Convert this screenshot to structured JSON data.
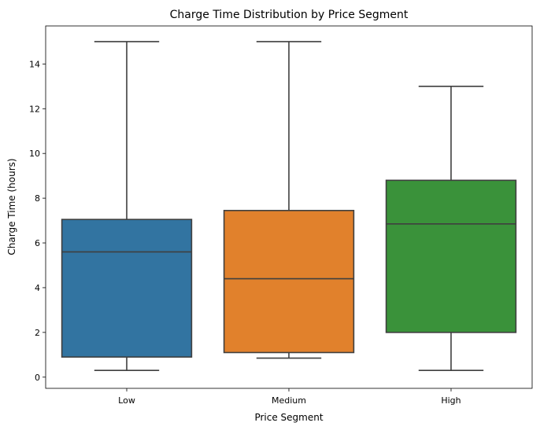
{
  "chart_data": {
    "type": "box",
    "title": "Charge Time Distribution by Price Segment",
    "xlabel": "Price Segment",
    "ylabel": "Charge Time (hours)",
    "ylim": [
      -0.5,
      15.7
    ],
    "yticks": [
      0,
      2,
      4,
      6,
      8,
      10,
      12,
      14
    ],
    "grid": false,
    "legend": "none",
    "categories": [
      "Low",
      "Medium",
      "High"
    ],
    "boxes": [
      {
        "category": "Low",
        "min": 0.3,
        "q1": 0.9,
        "median": 5.6,
        "q3": 7.05,
        "max": 15.0,
        "color": "#3274a1"
      },
      {
        "category": "Medium",
        "min": 0.85,
        "q1": 1.1,
        "median": 4.4,
        "q3": 7.45,
        "max": 15.0,
        "color": "#e1812c"
      },
      {
        "category": "High",
        "min": 0.3,
        "q1": 2.0,
        "median": 6.85,
        "q3": 8.8,
        "max": 13.0,
        "color": "#3a923a"
      }
    ],
    "line_color": "#3f3f3f"
  }
}
